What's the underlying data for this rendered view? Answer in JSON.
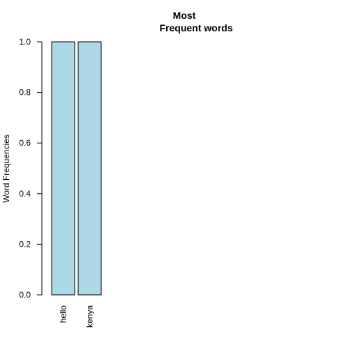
{
  "chart_data": {
    "type": "bar",
    "title_lines": [
      "Most",
      "Frequent words"
    ],
    "xlabel": "",
    "ylabel": "Word Frequencies",
    "categories": [
      "hello",
      "kenya"
    ],
    "values": [
      1.0,
      1.0
    ],
    "ylim": [
      0,
      1.0
    ],
    "yticks": [
      "0.0",
      "0.2",
      "0.4",
      "0.6",
      "0.8",
      "1.0"
    ],
    "bar_color": "#add8e6",
    "bar_border_color": "#000000",
    "grid": false,
    "legend": "none",
    "x_tick_label_orientation": "vertical"
  }
}
